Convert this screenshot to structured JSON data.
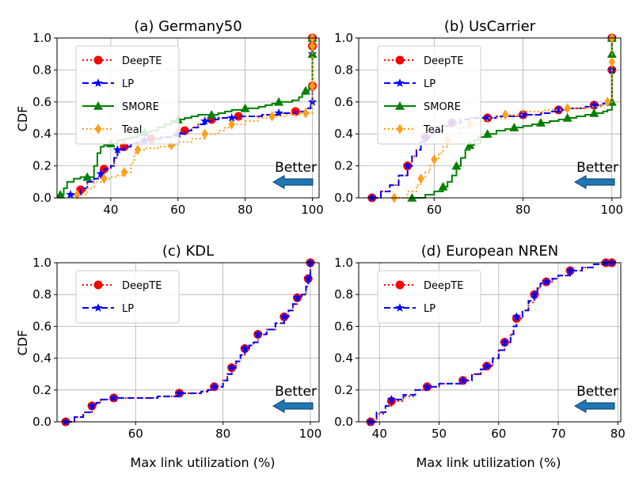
{
  "figure": {
    "xlabel": "Max link utilization (%)",
    "ylabel": "CDF",
    "annotation": "Better"
  },
  "colors": {
    "DeepTE": "#ff0000",
    "LP": "#0000ff",
    "SMORE": "#008000",
    "Teal": "#ff9f1c",
    "arrow": "#1f77b4",
    "grid": "#b0b0b0"
  },
  "chart_data": [
    {
      "type": "line",
      "title": "(a) Germany50",
      "xlim": [
        24,
        102
      ],
      "ylim": [
        0,
        1
      ],
      "xticks": [
        40,
        60,
        80,
        100
      ],
      "yticks": [
        0.0,
        0.2,
        0.4,
        0.6,
        0.8,
        1.0
      ],
      "xlabel": "",
      "ylabel": "CDF",
      "grid": true,
      "legend": "upper-left",
      "series": [
        {
          "name": "DeepTE",
          "x": [
            31,
            33,
            35,
            37,
            38,
            40,
            41,
            42,
            44,
            46,
            48,
            50,
            52,
            55,
            58,
            60,
            62,
            64,
            66,
            68,
            70,
            72,
            74,
            76,
            78,
            80,
            85,
            90,
            95,
            98,
            99.5,
            100,
            100,
            100,
            100,
            100,
            100,
            100
          ],
          "y": [
            0.05,
            0.1,
            0.12,
            0.15,
            0.18,
            0.2,
            0.25,
            0.3,
            0.32,
            0.34,
            0.35,
            0.36,
            0.37,
            0.38,
            0.39,
            0.4,
            0.42,
            0.44,
            0.46,
            0.48,
            0.49,
            0.5,
            0.5,
            0.5,
            0.51,
            0.51,
            0.52,
            0.53,
            0.54,
            0.56,
            0.58,
            0.6,
            0.7,
            0.8,
            0.85,
            0.9,
            0.95,
            1.0
          ]
        },
        {
          "name": "LP",
          "x": [
            28,
            31,
            33,
            35,
            37,
            38,
            40,
            41,
            42,
            44,
            46,
            48,
            50,
            52,
            55,
            58,
            60,
            62,
            64,
            66,
            68,
            70,
            72,
            74,
            76,
            78,
            80,
            85,
            90,
            95,
            98,
            99.5,
            100,
            100,
            100,
            100,
            100,
            100,
            100
          ],
          "y": [
            0.02,
            0.06,
            0.1,
            0.12,
            0.15,
            0.18,
            0.2,
            0.25,
            0.3,
            0.32,
            0.34,
            0.35,
            0.36,
            0.37,
            0.38,
            0.39,
            0.4,
            0.42,
            0.44,
            0.46,
            0.48,
            0.49,
            0.5,
            0.5,
            0.5,
            0.51,
            0.51,
            0.52,
            0.53,
            0.54,
            0.56,
            0.58,
            0.6,
            0.7,
            0.8,
            0.85,
            0.9,
            0.95,
            1.0
          ]
        },
        {
          "name": "SMORE",
          "x": [
            25,
            26,
            27,
            29,
            31,
            33,
            35,
            36,
            37,
            38,
            40,
            42,
            44,
            46,
            48,
            50,
            52,
            54,
            56,
            58,
            60,
            62,
            64,
            66,
            68,
            70,
            72,
            74,
            76,
            78,
            80,
            82,
            84,
            86,
            88,
            90,
            92,
            94,
            96,
            97,
            98,
            99,
            100,
            100,
            100,
            100,
            100,
            100,
            100
          ],
          "y": [
            0.02,
            0.06,
            0.1,
            0.12,
            0.13,
            0.13,
            0.2,
            0.28,
            0.32,
            0.33,
            0.34,
            0.36,
            0.37,
            0.38,
            0.4,
            0.41,
            0.42,
            0.44,
            0.46,
            0.48,
            0.49,
            0.5,
            0.51,
            0.52,
            0.52,
            0.52,
            0.53,
            0.54,
            0.55,
            0.55,
            0.56,
            0.56,
            0.57,
            0.58,
            0.59,
            0.6,
            0.6,
            0.61,
            0.63,
            0.65,
            0.67,
            0.7,
            0.73,
            0.8,
            0.85,
            0.9,
            0.95,
            0.98,
            1.0
          ]
        },
        {
          "name": "Teal",
          "x": [
            30,
            33,
            35,
            38,
            40,
            42,
            44,
            46,
            47,
            48,
            50,
            54,
            58,
            60,
            64,
            68,
            72,
            74,
            76,
            80,
            84,
            88,
            92,
            96,
            98,
            100,
            100,
            100,
            100,
            100,
            100,
            100
          ],
          "y": [
            0.02,
            0.06,
            0.1,
            0.12,
            0.13,
            0.14,
            0.16,
            0.22,
            0.28,
            0.3,
            0.31,
            0.32,
            0.33,
            0.35,
            0.37,
            0.4,
            0.42,
            0.44,
            0.46,
            0.48,
            0.5,
            0.51,
            0.52,
            0.53,
            0.53,
            0.55,
            0.6,
            0.7,
            0.8,
            0.9,
            0.95,
            1.0
          ]
        }
      ]
    },
    {
      "type": "line",
      "title": "(b) UsCarrier",
      "xlim": [
        43,
        102
      ],
      "ylim": [
        0,
        1
      ],
      "xticks": [
        60,
        80,
        100
      ],
      "yticks": [
        0.0,
        0.2,
        0.4,
        0.6,
        0.8,
        1.0
      ],
      "xlabel": "",
      "ylabel": "",
      "grid": true,
      "legend": "upper-left",
      "series": [
        {
          "name": "DeepTE",
          "x": [
            46,
            48,
            50,
            52,
            54,
            55,
            56,
            57,
            58,
            59,
            60,
            62,
            64,
            66,
            68,
            70,
            72,
            74,
            76,
            78,
            80,
            82,
            84,
            86,
            88,
            90,
            92,
            94,
            96,
            98,
            99,
            100,
            100,
            100,
            100,
            100,
            100
          ],
          "y": [
            0.0,
            0.04,
            0.08,
            0.14,
            0.2,
            0.26,
            0.3,
            0.35,
            0.38,
            0.4,
            0.42,
            0.45,
            0.47,
            0.49,
            0.5,
            0.5,
            0.5,
            0.51,
            0.51,
            0.51,
            0.52,
            0.52,
            0.53,
            0.54,
            0.55,
            0.56,
            0.56,
            0.57,
            0.58,
            0.59,
            0.6,
            0.7,
            0.8,
            0.85,
            0.9,
            0.95,
            1.0
          ]
        },
        {
          "name": "LP",
          "x": [
            46,
            48,
            50,
            52,
            54,
            55,
            56,
            57,
            58,
            59,
            60,
            62,
            64,
            66,
            68,
            70,
            72,
            74,
            76,
            78,
            80,
            82,
            84,
            86,
            88,
            90,
            92,
            94,
            96,
            98,
            99,
            100,
            100,
            100,
            100,
            100,
            100
          ],
          "y": [
            0.0,
            0.04,
            0.08,
            0.14,
            0.2,
            0.26,
            0.3,
            0.35,
            0.38,
            0.4,
            0.42,
            0.45,
            0.47,
            0.49,
            0.5,
            0.5,
            0.5,
            0.51,
            0.51,
            0.51,
            0.52,
            0.52,
            0.53,
            0.54,
            0.55,
            0.56,
            0.56,
            0.57,
            0.58,
            0.59,
            0.6,
            0.7,
            0.8,
            0.85,
            0.9,
            0.95,
            1.0
          ]
        },
        {
          "name": "SMORE",
          "x": [
            55,
            58,
            60,
            62,
            63,
            64,
            65,
            66,
            67,
            68,
            69,
            70,
            72,
            74,
            76,
            78,
            80,
            82,
            84,
            86,
            88,
            90,
            92,
            94,
            96,
            98,
            99,
            100,
            100,
            100,
            100,
            100,
            100
          ],
          "y": [
            0.0,
            0.02,
            0.04,
            0.07,
            0.1,
            0.14,
            0.2,
            0.25,
            0.3,
            0.33,
            0.36,
            0.38,
            0.4,
            0.42,
            0.43,
            0.44,
            0.45,
            0.46,
            0.47,
            0.48,
            0.49,
            0.5,
            0.51,
            0.52,
            0.53,
            0.54,
            0.55,
            0.6,
            0.7,
            0.8,
            0.9,
            0.95,
            1.0
          ]
        },
        {
          "name": "Teal",
          "x": [
            51,
            54,
            56,
            57,
            58,
            59,
            60,
            61,
            62,
            63,
            64,
            66,
            68,
            70,
            72,
            76,
            80,
            85,
            90,
            95,
            98,
            99,
            100,
            100,
            100,
            100,
            100,
            100
          ],
          "y": [
            0.0,
            0.04,
            0.08,
            0.12,
            0.16,
            0.2,
            0.24,
            0.28,
            0.32,
            0.36,
            0.4,
            0.44,
            0.46,
            0.48,
            0.5,
            0.52,
            0.54,
            0.55,
            0.56,
            0.57,
            0.58,
            0.6,
            0.7,
            0.8,
            0.85,
            0.9,
            0.95,
            1.0
          ]
        }
      ]
    },
    {
      "type": "line",
      "title": "(c) KDL",
      "xlim": [
        42,
        102
      ],
      "ylim": [
        0,
        1
      ],
      "xticks": [
        60,
        80,
        100
      ],
      "yticks": [
        0.0,
        0.2,
        0.4,
        0.6,
        0.8,
        1.0
      ],
      "xlabel": "Max link utilization (%)",
      "ylabel": "CDF",
      "grid": true,
      "legend": "upper-left",
      "series": [
        {
          "name": "DeepTE",
          "x": [
            44,
            46,
            48,
            50,
            51,
            52,
            55,
            60,
            65,
            70,
            75,
            76.5,
            78,
            80,
            81,
            82,
            83,
            84,
            85,
            86,
            87,
            88,
            90,
            92,
            94,
            95,
            96,
            97,
            98,
            99,
            99.5,
            100,
            100
          ],
          "y": [
            0.0,
            0.03,
            0.06,
            0.1,
            0.12,
            0.14,
            0.15,
            0.15,
            0.16,
            0.18,
            0.19,
            0.2,
            0.22,
            0.26,
            0.3,
            0.34,
            0.38,
            0.42,
            0.46,
            0.48,
            0.5,
            0.55,
            0.58,
            0.62,
            0.66,
            0.7,
            0.74,
            0.78,
            0.8,
            0.85,
            0.9,
            0.95,
            1.0
          ]
        },
        {
          "name": "LP",
          "x": [
            44,
            46,
            48,
            50,
            51,
            52,
            55,
            60,
            65,
            70,
            75,
            76.5,
            78,
            80,
            81,
            82,
            83,
            84,
            85,
            86,
            87,
            88,
            90,
            92,
            94,
            95,
            96,
            97,
            98,
            99,
            99.5,
            100,
            100
          ],
          "y": [
            0.0,
            0.03,
            0.06,
            0.1,
            0.12,
            0.14,
            0.15,
            0.15,
            0.16,
            0.18,
            0.19,
            0.2,
            0.22,
            0.26,
            0.3,
            0.34,
            0.38,
            0.42,
            0.46,
            0.48,
            0.5,
            0.55,
            0.58,
            0.62,
            0.66,
            0.7,
            0.74,
            0.78,
            0.8,
            0.85,
            0.9,
            0.95,
            1.0
          ]
        }
      ]
    },
    {
      "type": "line",
      "title": "(d) European NREN",
      "xlim": [
        36.5,
        80.5
      ],
      "ylim": [
        0,
        1
      ],
      "xticks": [
        40,
        50,
        60,
        70,
        80
      ],
      "yticks": [
        0.0,
        0.2,
        0.4,
        0.6,
        0.8,
        1.0
      ],
      "xlabel": "Max link utilization (%)",
      "ylabel": "",
      "grid": true,
      "legend": "upper-left",
      "series": [
        {
          "name": "DeepTE",
          "x": [
            38.5,
            39.5,
            41,
            42,
            44,
            46,
            48,
            50,
            52,
            54,
            55.5,
            57,
            58,
            59,
            60,
            61,
            62,
            62.5,
            63,
            64,
            65,
            66,
            66.5,
            67,
            68,
            69,
            70,
            72,
            74,
            76,
            78,
            79
          ],
          "y": [
            0.0,
            0.05,
            0.1,
            0.13,
            0.16,
            0.2,
            0.22,
            0.24,
            0.24,
            0.26,
            0.3,
            0.33,
            0.35,
            0.4,
            0.45,
            0.5,
            0.55,
            0.6,
            0.65,
            0.7,
            0.75,
            0.8,
            0.84,
            0.87,
            0.88,
            0.9,
            0.92,
            0.95,
            0.97,
            0.99,
            1.0,
            1.0
          ]
        },
        {
          "name": "LP",
          "x": [
            38.5,
            39.5,
            41,
            42,
            44,
            46,
            48,
            50,
            52,
            54,
            55.5,
            57,
            58,
            59,
            60,
            61,
            62,
            62.5,
            63,
            64,
            65,
            66,
            66.5,
            67,
            68,
            69,
            70,
            72,
            74,
            76,
            78,
            79
          ],
          "y": [
            0.0,
            0.06,
            0.1,
            0.14,
            0.17,
            0.2,
            0.22,
            0.24,
            0.24,
            0.26,
            0.3,
            0.33,
            0.35,
            0.4,
            0.45,
            0.5,
            0.55,
            0.6,
            0.66,
            0.7,
            0.76,
            0.8,
            0.84,
            0.87,
            0.88,
            0.9,
            0.92,
            0.95,
            0.97,
            0.99,
            1.0,
            1.0
          ]
        }
      ]
    }
  ]
}
